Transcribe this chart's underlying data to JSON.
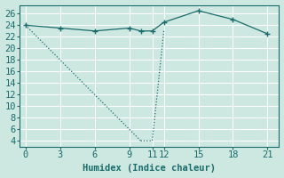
{
  "line1_x": [
    0,
    10,
    11,
    12
  ],
  "line1_y": [
    24,
    4,
    4,
    23
  ],
  "line2_x": [
    0,
    3,
    6,
    9,
    10,
    11,
    12,
    15,
    18,
    21
  ],
  "line2_y": [
    24,
    23.5,
    23,
    23.5,
    23,
    23,
    24.5,
    26.5,
    25,
    22.5
  ],
  "line_color": "#1a6b6b",
  "bg_color": "#cce8e0",
  "grid_color": "#ffffff",
  "xlabel": "Humidex (Indice chaleur)",
  "xlim": [
    -0.5,
    22
  ],
  "ylim": [
    3,
    27.5
  ],
  "xticks": [
    0,
    3,
    6,
    9,
    11,
    12,
    15,
    18,
    21
  ],
  "yticks": [
    4,
    6,
    8,
    10,
    12,
    14,
    16,
    18,
    20,
    22,
    24,
    26
  ],
  "font_size": 7.5
}
